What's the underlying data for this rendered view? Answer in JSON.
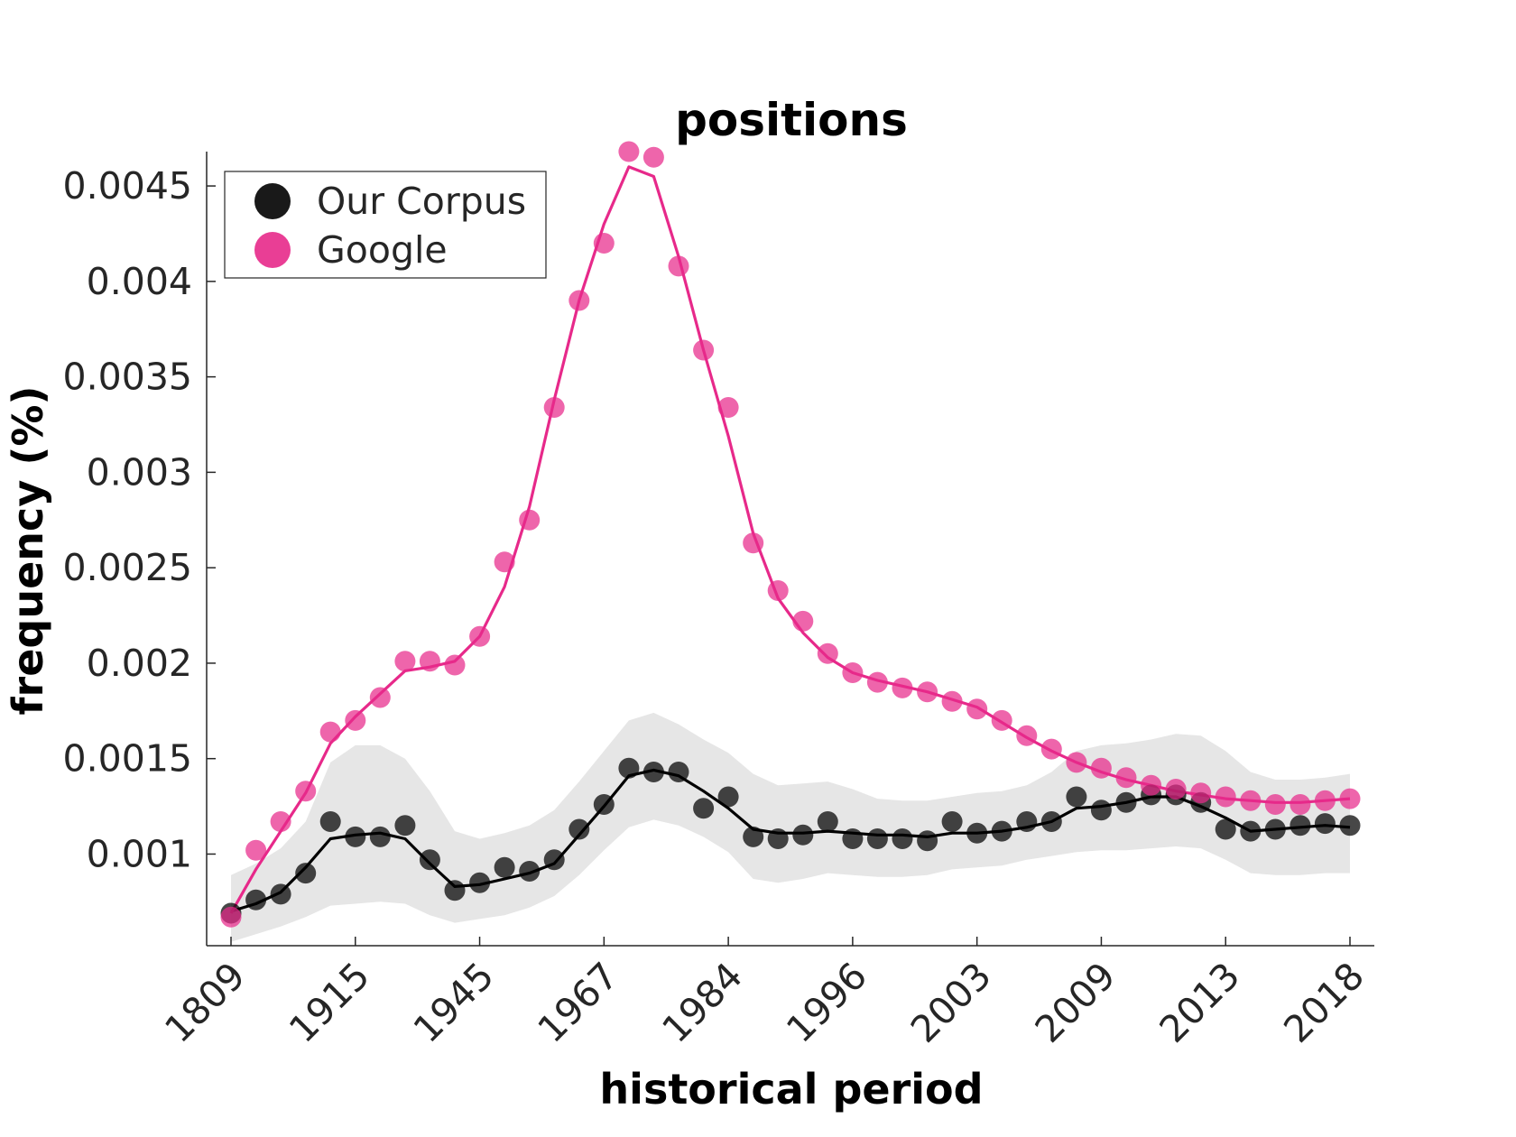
{
  "chart_data": {
    "type": "line",
    "title": "positions",
    "xlabel": "historical period",
    "ylabel": "frequency (%)",
    "x_tick_labels": [
      "1809",
      "1915",
      "1945",
      "1967",
      "1984",
      "1996",
      "2003",
      "2009",
      "2013",
      "2018"
    ],
    "y_ticks": [
      0.001,
      0.0015,
      0.002,
      0.0025,
      0.003,
      0.0035,
      0.004,
      0.0045
    ],
    "y_tick_labels": [
      "0.001",
      "0.0015",
      "0.002",
      "0.0025",
      "0.003",
      "0.0035",
      "0.004",
      "0.0045"
    ],
    "ylim": [
      0.00052,
      0.00468
    ],
    "legend": {
      "position": "top-left",
      "entries": [
        "Our Corpus",
        "Google"
      ]
    },
    "grid": false,
    "series": [
      {
        "name": "Our Corpus",
        "color": "#000000",
        "points": [
          0.00069,
          0.00076,
          0.00079,
          0.0009,
          0.00117,
          0.00109,
          0.00109,
          0.00115,
          0.00097,
          0.00081,
          0.00085,
          0.00093,
          0.00091,
          0.00097,
          0.00113,
          0.00126,
          0.00145,
          0.00143,
          0.00143,
          0.00124,
          0.0013,
          0.00109,
          0.00108,
          0.0011,
          0.00117,
          0.00108,
          0.00108,
          0.00108,
          0.00107,
          0.00117,
          0.00111,
          0.00112,
          0.00117,
          0.00117,
          0.0013,
          0.00123,
          0.00127,
          0.00131,
          0.00131,
          0.00127,
          0.00113,
          0.00112,
          0.00113,
          0.00115,
          0.00116,
          0.00115
        ],
        "smooth": [
          0.0007,
          0.00074,
          0.0008,
          0.00093,
          0.00108,
          0.0011,
          0.00111,
          0.00108,
          0.00095,
          0.00083,
          0.00084,
          0.00087,
          0.0009,
          0.00095,
          0.0011,
          0.00125,
          0.00141,
          0.00144,
          0.00141,
          0.00133,
          0.00124,
          0.00113,
          0.00111,
          0.00111,
          0.00112,
          0.00111,
          0.0011,
          0.0011,
          0.00109,
          0.00111,
          0.00111,
          0.00112,
          0.00114,
          0.00117,
          0.00124,
          0.00125,
          0.00127,
          0.0013,
          0.0013,
          0.00125,
          0.00119,
          0.00112,
          0.00113,
          0.00114,
          0.00115,
          0.00114
        ],
        "band_upper": [
          0.00089,
          0.00095,
          0.00103,
          0.00117,
          0.00148,
          0.00157,
          0.00157,
          0.0015,
          0.00133,
          0.00112,
          0.00108,
          0.00111,
          0.00115,
          0.00123,
          0.00138,
          0.00154,
          0.0017,
          0.00174,
          0.00168,
          0.0016,
          0.00153,
          0.00142,
          0.00136,
          0.00137,
          0.00138,
          0.00134,
          0.00129,
          0.00128,
          0.00128,
          0.0013,
          0.00132,
          0.00133,
          0.00136,
          0.00143,
          0.00154,
          0.00157,
          0.00158,
          0.0016,
          0.00163,
          0.00162,
          0.00154,
          0.00143,
          0.00139,
          0.00139,
          0.0014,
          0.00142
        ],
        "band_lower": [
          0.00054,
          0.00058,
          0.00062,
          0.00067,
          0.00073,
          0.00074,
          0.00075,
          0.00074,
          0.00068,
          0.00064,
          0.00066,
          0.00068,
          0.00072,
          0.00078,
          0.00089,
          0.00102,
          0.00114,
          0.00118,
          0.00115,
          0.00109,
          0.00101,
          0.00087,
          0.00085,
          0.00087,
          0.0009,
          0.00089,
          0.00088,
          0.00088,
          0.00089,
          0.00092,
          0.00093,
          0.00094,
          0.00097,
          0.00099,
          0.00101,
          0.00102,
          0.00102,
          0.00103,
          0.00104,
          0.00103,
          0.00097,
          0.0009,
          0.00089,
          0.00089,
          0.0009,
          0.0009
        ]
      },
      {
        "name": "Google",
        "color": "#E7298A",
        "points": [
          0.00067,
          0.00102,
          0.00117,
          0.00133,
          0.00164,
          0.0017,
          0.00182,
          0.00201,
          0.00201,
          0.00199,
          0.00214,
          0.00253,
          0.00275,
          0.00334,
          0.0039,
          0.0042,
          0.00468,
          0.00465,
          0.00408,
          0.00364,
          0.00334,
          0.00263,
          0.00238,
          0.00222,
          0.00205,
          0.00195,
          0.0019,
          0.00187,
          0.00185,
          0.0018,
          0.00176,
          0.0017,
          0.00162,
          0.00155,
          0.00148,
          0.00145,
          0.0014,
          0.00136,
          0.00134,
          0.00132,
          0.0013,
          0.00128,
          0.00126,
          0.00126,
          0.00128,
          0.00129
        ],
        "smooth": [
          0.00069,
          0.00092,
          0.00112,
          0.00132,
          0.00158,
          0.00172,
          0.00184,
          0.00196,
          0.00198,
          0.00201,
          0.00214,
          0.0024,
          0.00282,
          0.00338,
          0.0039,
          0.0043,
          0.0046,
          0.00455,
          0.00413,
          0.00364,
          0.00319,
          0.00268,
          0.00234,
          0.00216,
          0.00203,
          0.00195,
          0.00191,
          0.00188,
          0.00185,
          0.00181,
          0.00177,
          0.00169,
          0.00161,
          0.00154,
          0.00148,
          0.00143,
          0.00139,
          0.00136,
          0.00133,
          0.00131,
          0.00129,
          0.00128,
          0.00127,
          0.00127,
          0.00128,
          0.00129
        ]
      }
    ]
  }
}
